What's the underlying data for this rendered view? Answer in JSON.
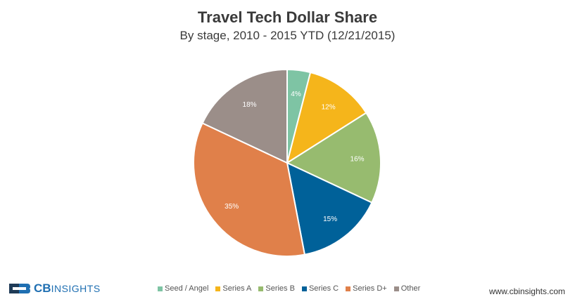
{
  "chart_data": {
    "type": "pie",
    "title": "Travel Tech Dollar Share",
    "subtitle": "By stage, 2010 - 2015 YTD (12/21/2015)",
    "categories": [
      "Seed / Angel",
      "Series A",
      "Series B",
      "Series C",
      "Series D+",
      "Other"
    ],
    "values": [
      4,
      12,
      16,
      15,
      35,
      18
    ],
    "labels": [
      "4%",
      "12%",
      "16%",
      "15%",
      "35%",
      "18%"
    ],
    "colors": [
      "#7ec4a4",
      "#f5b51b",
      "#97bb6f",
      "#006199",
      "#e0804a",
      "#9b8e89"
    ],
    "legend_position": "bottom"
  },
  "branding": {
    "logo_cb": "CB",
    "logo_insights": "INSIGHTS",
    "website": "www.cbinsights.com",
    "logo_color": "#1f6fb2"
  }
}
